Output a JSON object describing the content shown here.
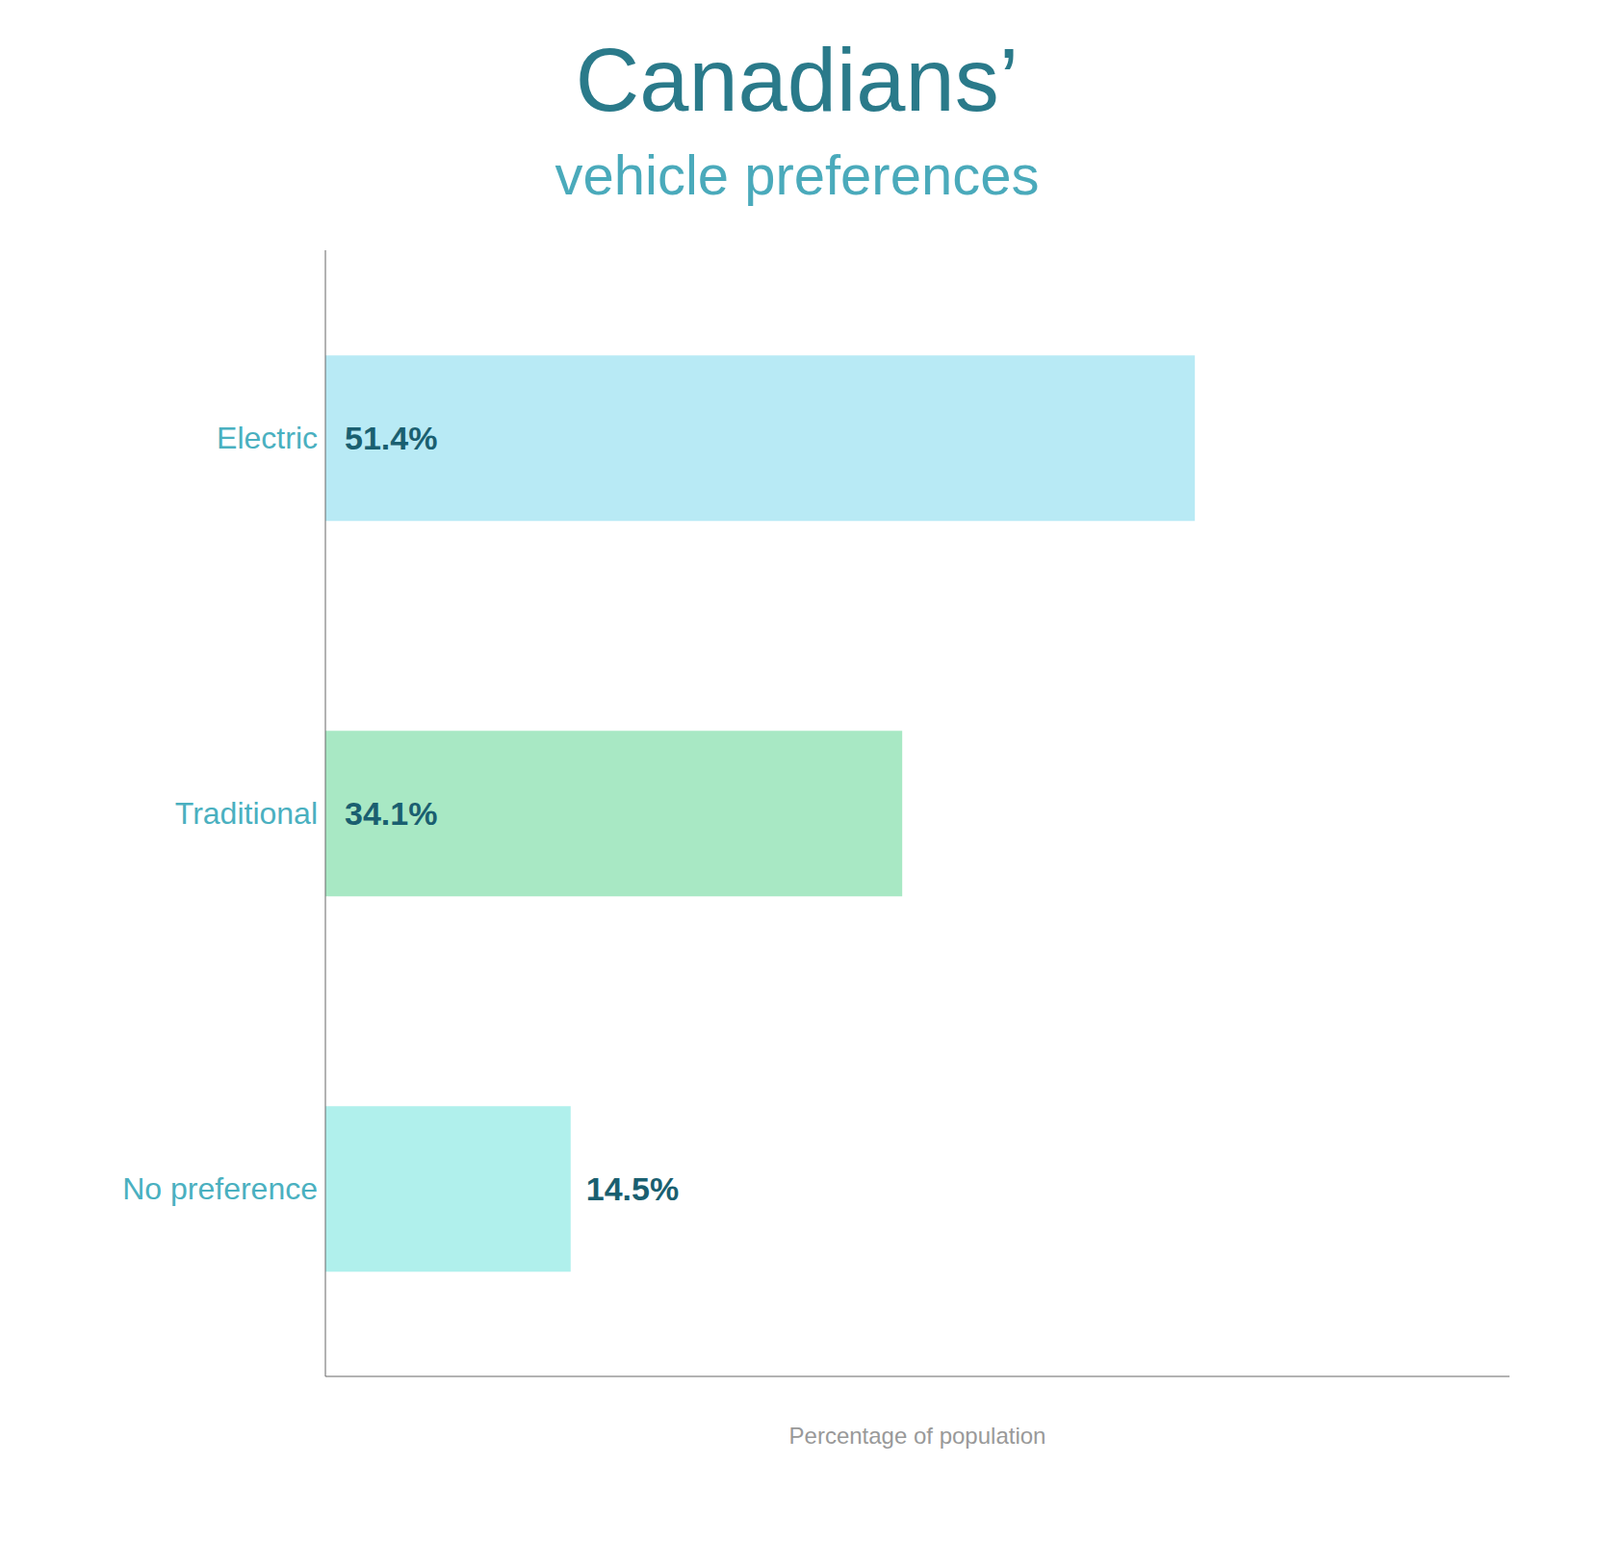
{
  "chart_data": {
    "type": "bar",
    "orientation": "horizontal",
    "title": "Canadians’",
    "subtitle": "vehicle preferences",
    "categories": [
      "Electric",
      "Traditional",
      "No preference"
    ],
    "values": [
      51.4,
      34.1,
      14.5
    ],
    "value_labels": [
      "51.4%",
      "34.1%",
      "14.5%"
    ],
    "data_labels": true,
    "colors": [
      "#b8eaf5",
      "#a8e8c4",
      "#b0f0ec"
    ],
    "xlabel": "Percentage of population",
    "xlim": [
      0,
      70
    ],
    "tick_labels": "y",
    "grid": false
  }
}
